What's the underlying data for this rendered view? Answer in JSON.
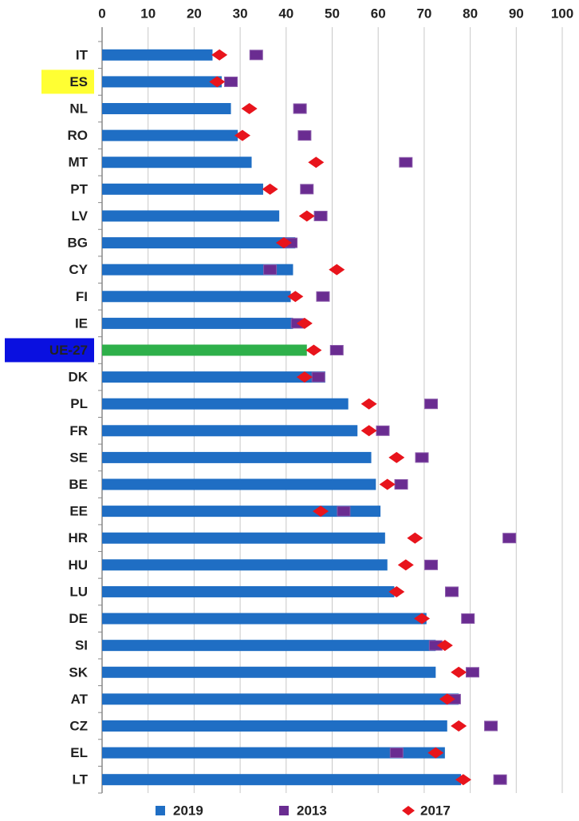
{
  "chart_data": {
    "type": "bar",
    "orientation": "horizontal",
    "categories": [
      "IT",
      "ES",
      "NL",
      "RO",
      "MT",
      "PT",
      "LV",
      "BG",
      "CY",
      "FI",
      "IE",
      "UE-27",
      "DK",
      "PL",
      "FR",
      "SE",
      "BE",
      "EE",
      "HR",
      "HU",
      "LU",
      "DE",
      "SI",
      "SK",
      "AT",
      "CZ",
      "EL",
      "LT"
    ],
    "series": [
      {
        "name": "2019",
        "marker": "bar",
        "color": "#1f6ec4",
        "values": [
          24,
          26,
          28,
          29.5,
          32.5,
          35,
          38.5,
          42,
          41.5,
          41,
          41.5,
          44.5,
          48.5,
          53.5,
          55.5,
          58.5,
          59.5,
          60.5,
          61.5,
          62,
          63.5,
          70.5,
          72.5,
          72.5,
          77.5,
          75,
          74.5,
          78
        ]
      },
      {
        "name": "2013",
        "marker": "square",
        "color": "#6a2c91",
        "values": [
          33.5,
          28,
          43,
          44,
          66,
          44.5,
          47.5,
          41,
          36.5,
          48,
          42.5,
          51,
          47,
          71.5,
          61,
          69.5,
          65,
          52.5,
          88.5,
          71.5,
          76,
          79.5,
          72.5,
          80.5,
          76.5,
          84.5,
          64,
          86.5
        ]
      },
      {
        "name": "2017",
        "marker": "diamond",
        "color": "#e8141c",
        "values": [
          25.5,
          25,
          32,
          30.5,
          46.5,
          36.5,
          44.5,
          39.5,
          51,
          42,
          44,
          46,
          44,
          58,
          58,
          64,
          62,
          47.5,
          68,
          66,
          64,
          69.5,
          74.5,
          77.5,
          75,
          77.5,
          72.5,
          78.5
        ]
      }
    ],
    "xlim": [
      0,
      100
    ],
    "xticks": [
      0,
      10,
      20,
      30,
      40,
      50,
      60,
      70,
      80,
      90,
      100
    ],
    "grid": true,
    "legend": "bottom",
    "label_highlights": [
      {
        "index": 1,
        "background": "#ffff33",
        "text_color": "#000000"
      },
      {
        "index": 11,
        "background": "#0a10e0",
        "text_color": "#ffffff",
        "bar_color": "#2eb04a"
      }
    ]
  }
}
